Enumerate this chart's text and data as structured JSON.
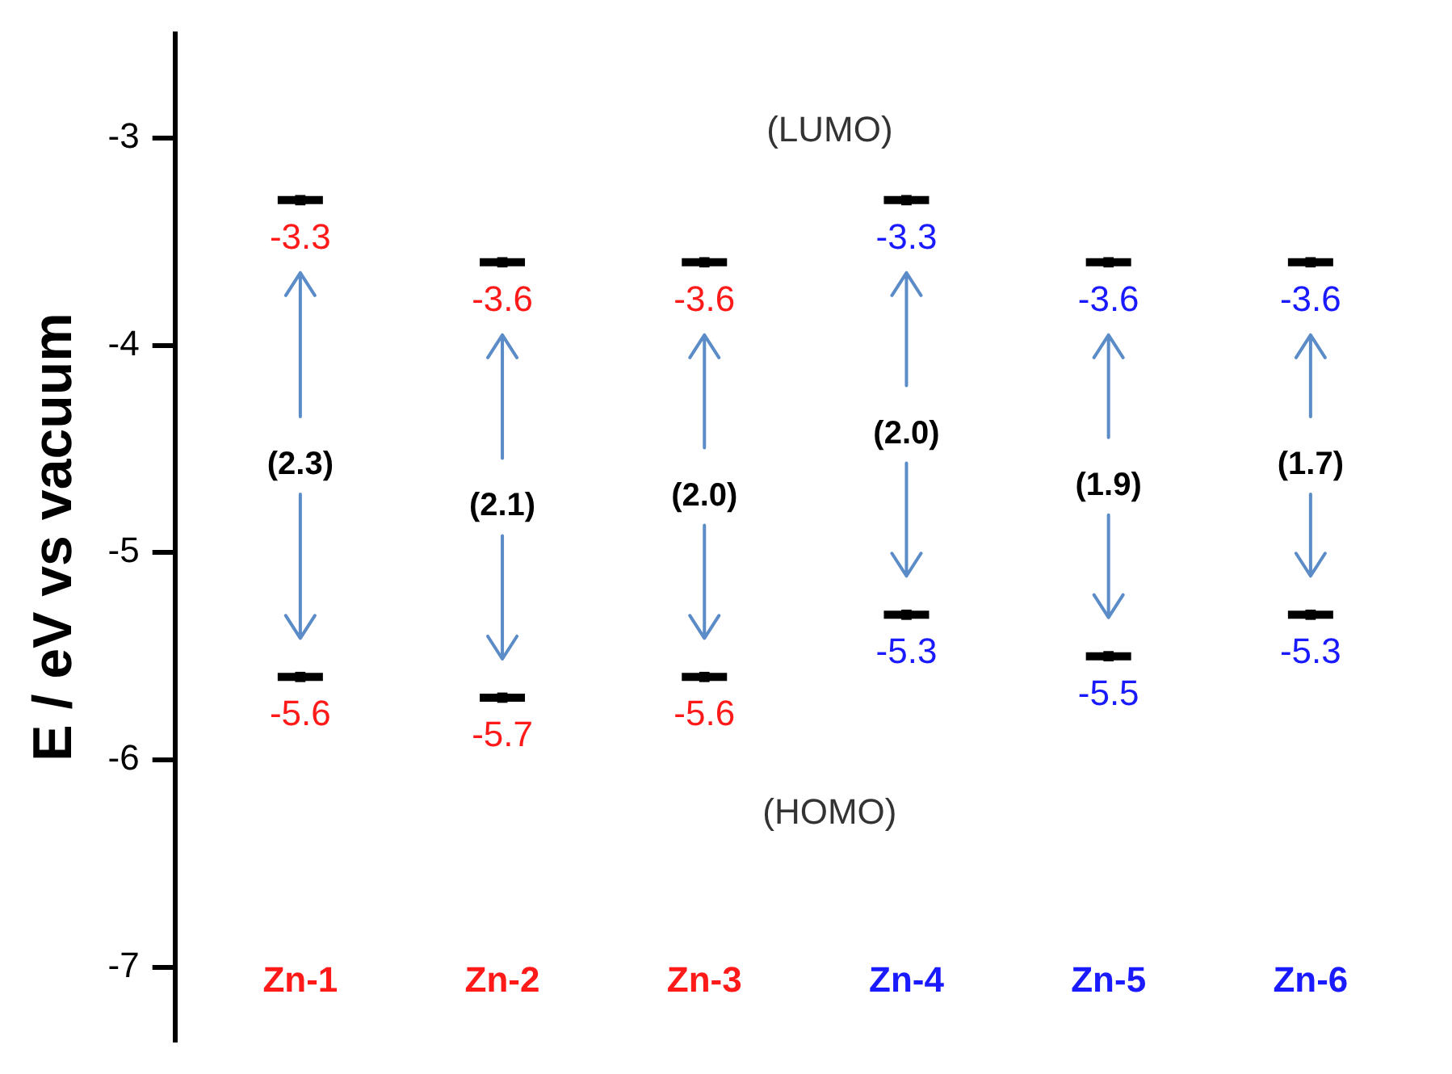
{
  "chart_data": {
    "type": "scatter",
    "ylabel": "E / eV vs vacuum",
    "categories": [
      "Zn-1",
      "Zn-2",
      "Zn-3",
      "Zn-4",
      "Zn-5",
      "Zn-6"
    ],
    "series": [
      {
        "color": "#000000",
        "values": [
          -3.3,
          -3.6,
          -3.6,
          -3.3,
          -3.6,
          -3.6
        ]
      },
      {
        "color": "#000000",
        "values": [
          -5.6,
          -5.7,
          -5.6,
          -5.3,
          -5.5,
          -5.3
        ]
      }
    ],
    "ylim": [
      -7.35,
      -2.5
    ],
    "yticks": [
      -7,
      -6,
      -5,
      -4,
      -3
    ],
    "grid": false,
    "legend": false,
    "data_labels": true,
    "tick_labels": "y",
    "marker": "square",
    "annotations": [
      "(LUMO)",
      "(HOMO)",
      "(2.3)",
      "(2.1)",
      "(2.0)",
      "(2.0)",
      "(1.9)",
      "(1.7)"
    ]
  }
}
